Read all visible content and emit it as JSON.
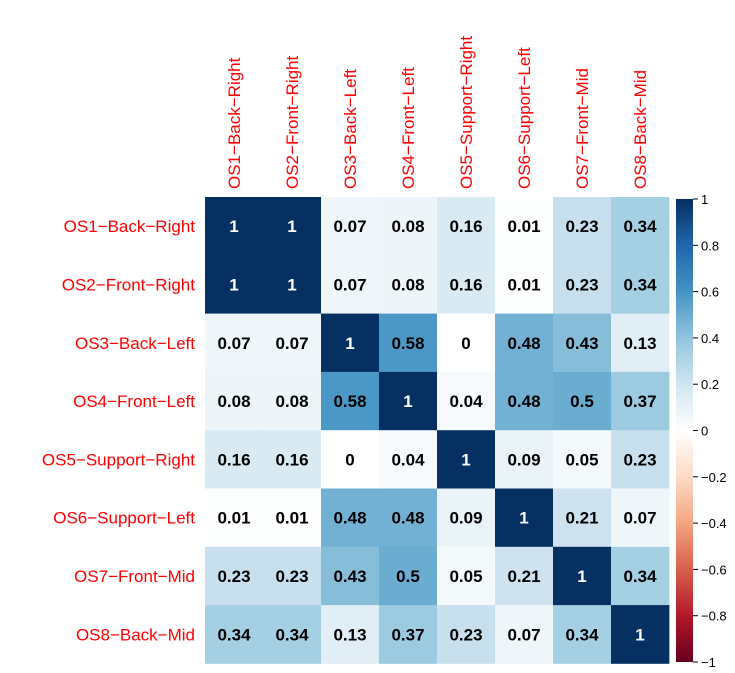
{
  "chart_data": {
    "type": "heatmap",
    "title": "",
    "labels": [
      "OS1−Back−Right",
      "OS2−Front−Right",
      "OS3−Back−Left",
      "OS4−Front−Left",
      "OS5−Support−Right",
      "OS6−Support−Left",
      "OS7−Front−Mid",
      "OS8−Back−Mid"
    ],
    "matrix": [
      [
        1,
        1,
        0.07,
        0.08,
        0.16,
        0.01,
        0.23,
        0.34
      ],
      [
        1,
        1,
        0.07,
        0.08,
        0.16,
        0.01,
        0.23,
        0.34
      ],
      [
        0.07,
        0.07,
        1,
        0.58,
        0,
        0.48,
        0.43,
        0.13
      ],
      [
        0.08,
        0.08,
        0.58,
        1,
        0.04,
        0.48,
        0.5,
        0.37
      ],
      [
        0.16,
        0.16,
        0,
        0.04,
        1,
        0.09,
        0.05,
        0.23
      ],
      [
        0.01,
        0.01,
        0.48,
        0.48,
        0.09,
        1,
        0.21,
        0.07
      ],
      [
        0.23,
        0.23,
        0.43,
        0.5,
        0.05,
        0.21,
        1,
        0.34
      ],
      [
        0.34,
        0.34,
        0.13,
        0.37,
        0.23,
        0.07,
        0.34,
        1
      ]
    ],
    "colorbar": {
      "range": [
        -1,
        1
      ],
      "ticks": [
        1,
        0.8,
        0.6,
        0.4,
        0.2,
        0,
        -0.2,
        -0.4,
        -0.6,
        -0.8,
        -1
      ],
      "tick_labels": [
        "1",
        "0.8",
        "0.6",
        "0.4",
        "0.2",
        "0",
        "−0.2",
        "−0.4",
        "−0.6",
        "−0.8",
        "−1"
      ],
      "colors": [
        "#67001f",
        "#b2182b",
        "#d6604d",
        "#f4a582",
        "#fddbc7",
        "#ffffff",
        "#d1e5f0",
        "#92c5de",
        "#4393c3",
        "#2166ac",
        "#053061"
      ]
    },
    "label_color": "#ff0000",
    "value_text_color_dark": "#000000",
    "value_text_color_light": "#ffffff"
  }
}
